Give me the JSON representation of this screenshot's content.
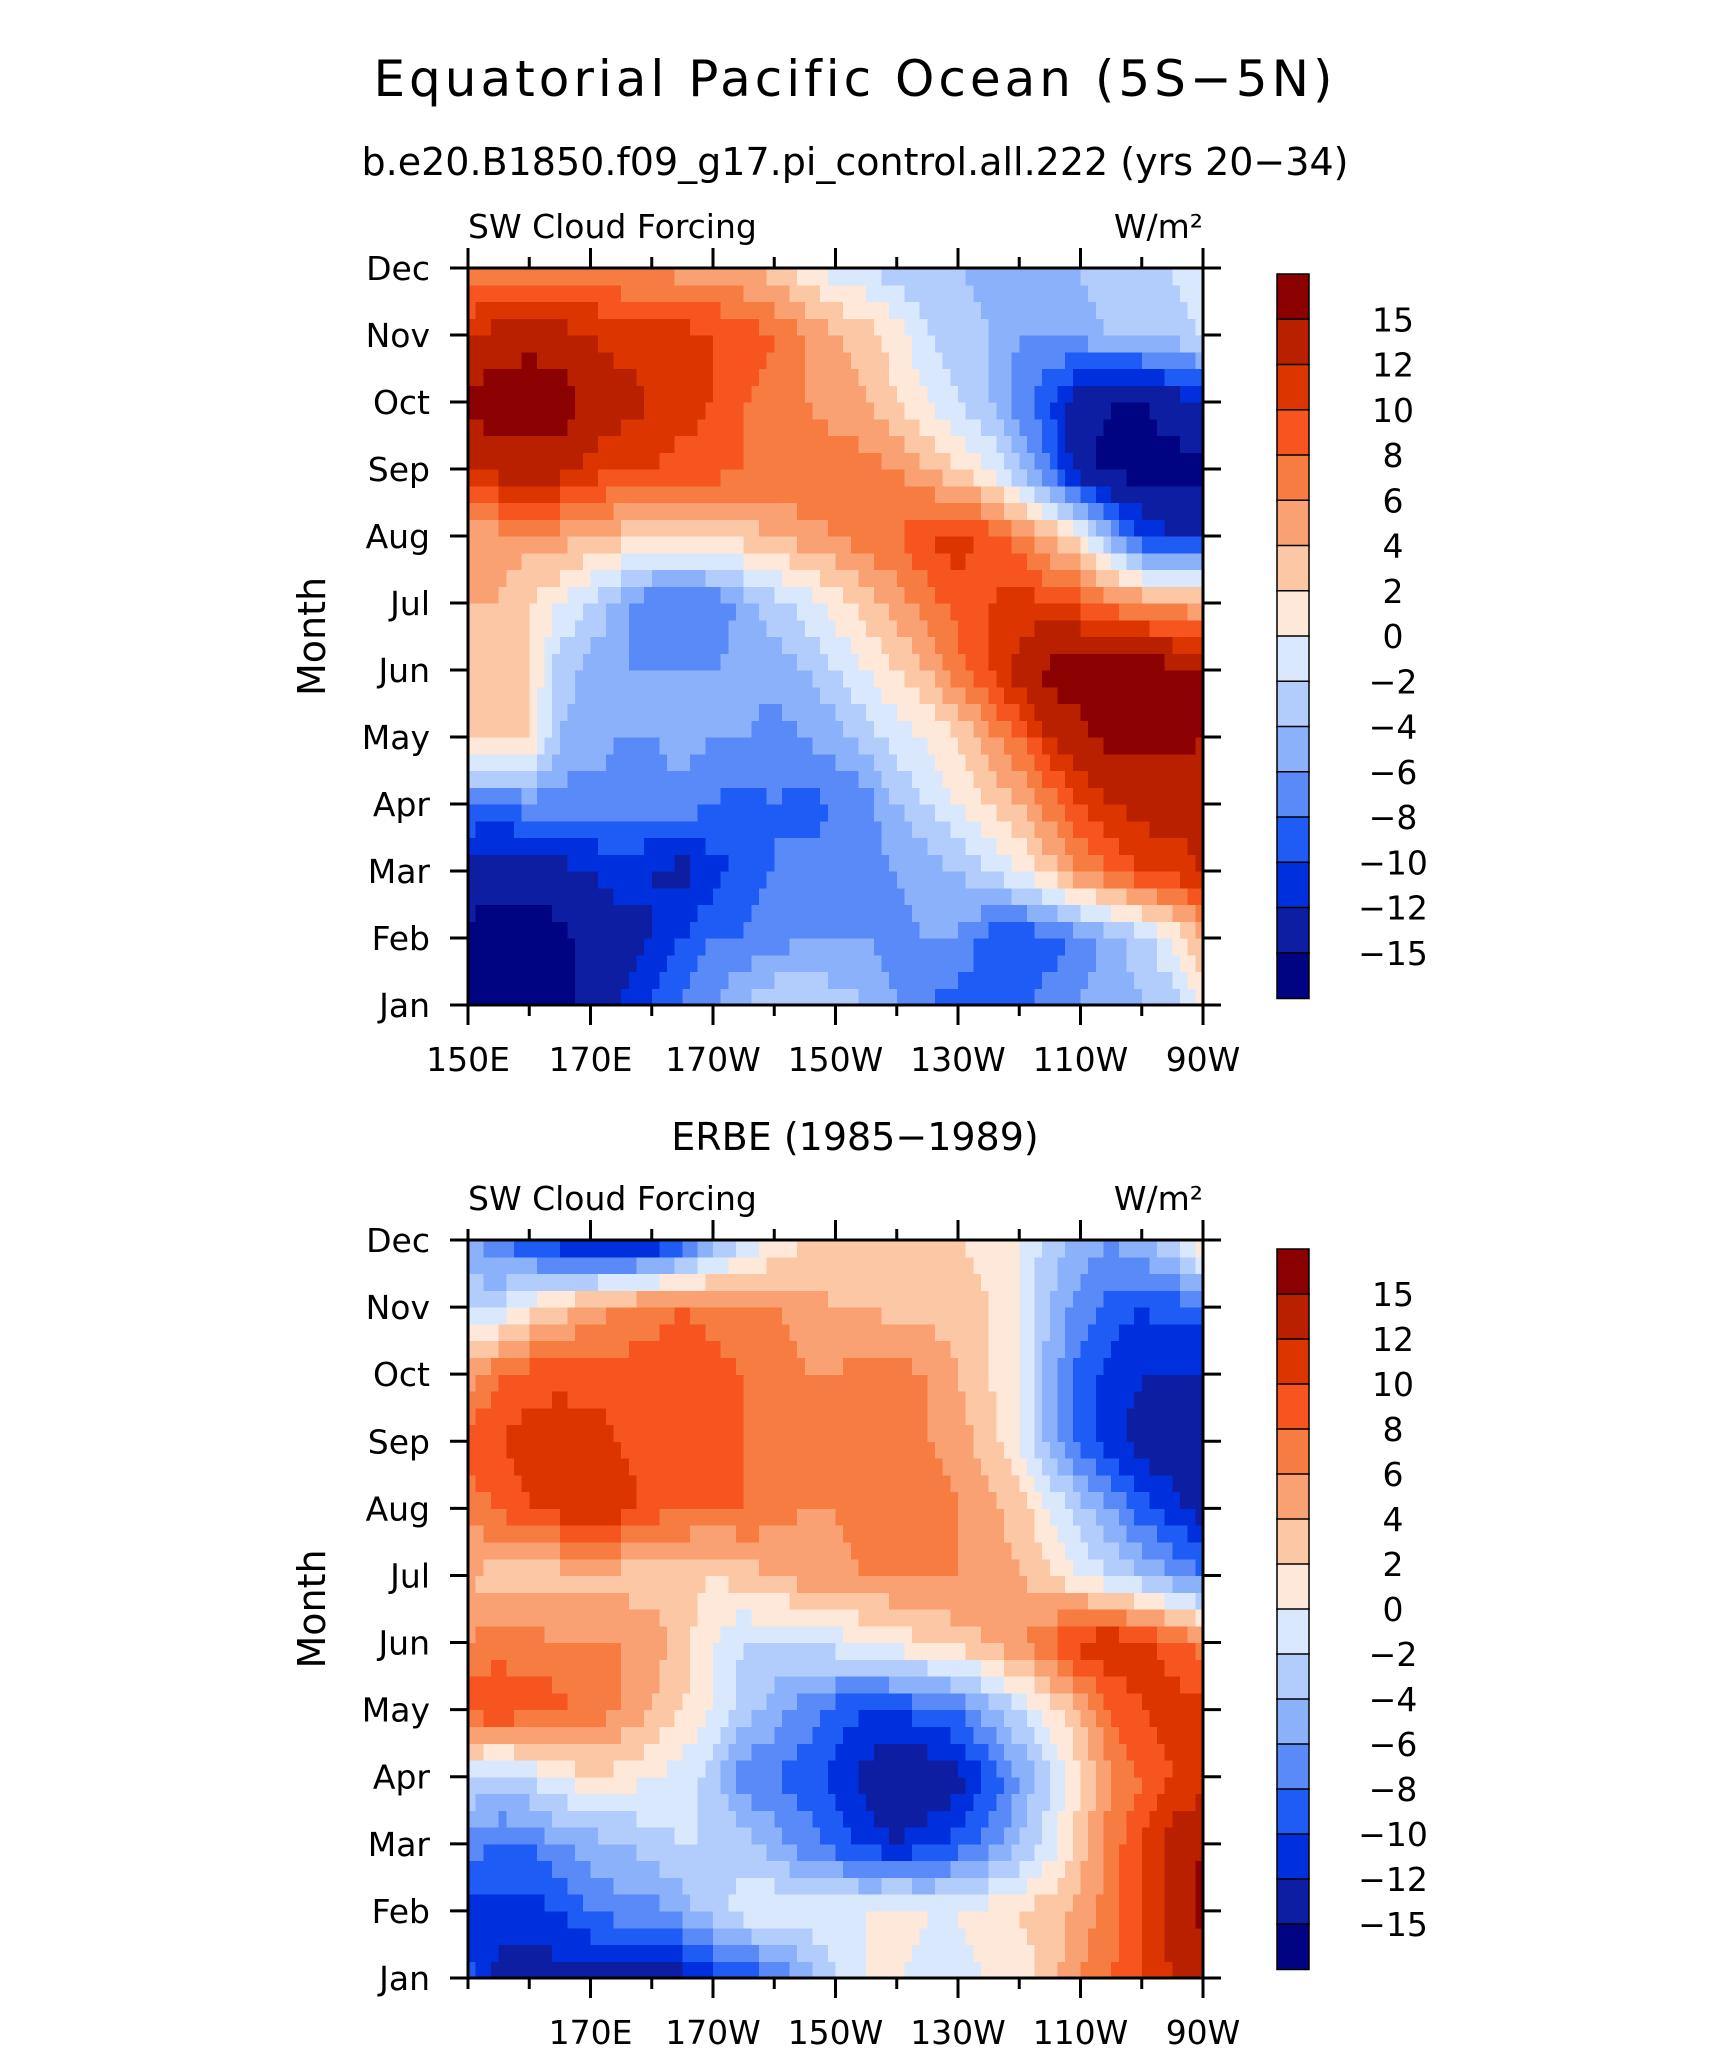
{
  "figure": {
    "title": "Equatorial Pacific Ocean (5S−5N)",
    "subtitle": "b.e20.B1850.f09_g17.pi_control.all.222 (yrs 20−34)",
    "panel2_title": "ERBE (1985−1989)"
  },
  "colorbar": {
    "labels": [
      "15",
      "12",
      "10",
      "8",
      "6",
      "4",
      "2",
      "0",
      "−2",
      "−4",
      "−6",
      "−8",
      "−10",
      "−12",
      "−15"
    ],
    "colors": [
      "#8b0000",
      "#b82000",
      "#dd3500",
      "#f65520",
      "#f67c42",
      "#f9a172",
      "#fbc7a4",
      "#fde8d9",
      "#d9e8fc",
      "#b2cdfb",
      "#8bb1fa",
      "#5a8af7",
      "#1e5cf5",
      "#0030de",
      "#0d1ea3",
      "#000483"
    ]
  },
  "chart_data": [
    {
      "type": "heatmap",
      "panel": "model",
      "left_label": "SW Cloud Forcing",
      "right_label": "W/m²",
      "ylabel": "Month",
      "y_categories": [
        "Jan",
        "Feb",
        "Mar",
        "Apr",
        "May",
        "Jun",
        "Jul",
        "Aug",
        "Sep",
        "Oct",
        "Nov",
        "Dec"
      ],
      "x_tick_labels": [
        "150E",
        "170E",
        "170W",
        "150W",
        "130W",
        "110W",
        "90W"
      ],
      "x_tick_lon": [
        150,
        170,
        190,
        210,
        230,
        250,
        270
      ],
      "xlim": [
        150,
        270
      ],
      "grid_lon": [
        150,
        155,
        160,
        165,
        170,
        175,
        180,
        185,
        190,
        195,
        200,
        205,
        210,
        215,
        220,
        225,
        230,
        235,
        240,
        245,
        250,
        255,
        260,
        265,
        270
      ],
      "units": "W/m²",
      "values": [
        [
          -16,
          -16,
          -16,
          -16,
          -14,
          -12,
          -10,
          -8,
          -6,
          -4,
          -2,
          -2,
          -3,
          -4,
          -6,
          -8,
          -9,
          -10,
          -9,
          -7,
          -6,
          -5,
          -4,
          -3,
          0
        ],
        [
          -16,
          -16,
          -16,
          -16,
          -14,
          -13,
          -12,
          -10,
          -8,
          -8,
          -7,
          -6,
          -6,
          -6,
          -7,
          -6,
          -6,
          -9,
          -10,
          -9,
          -7,
          -5,
          -3,
          0,
          4
        ],
        [
          -13,
          -14,
          -14,
          -13,
          -12,
          -11,
          -12,
          -13,
          -11,
          -9,
          -8,
          -7,
          -7,
          -7,
          -6,
          -5,
          -4,
          -2,
          0,
          3,
          6,
          8,
          10,
          11,
          12
        ],
        [
          -8,
          -8,
          -7,
          -7,
          -7,
          -7,
          -7,
          -7,
          -8,
          -9,
          -8,
          -9,
          -8,
          -7,
          -4,
          -2,
          0,
          2,
          4,
          7,
          10,
          12,
          13,
          13,
          13
        ],
        [
          3,
          3,
          2,
          -4,
          -5,
          -6,
          -6,
          -5,
          -6,
          -6,
          -7,
          -6,
          -5,
          -3,
          -1,
          0,
          2,
          5,
          8,
          12,
          14,
          16,
          16,
          16,
          15
        ],
        [
          3,
          3,
          2,
          -3,
          -5,
          -6,
          -6,
          -6,
          -6,
          -5,
          -5,
          -4,
          -2,
          0,
          2,
          4,
          7,
          10,
          13,
          16,
          17,
          17,
          17,
          16,
          15
        ],
        [
          4,
          4,
          2,
          0,
          -2,
          -5,
          -8,
          -8,
          -8,
          -5,
          -3,
          -1,
          1,
          3,
          5,
          7,
          9,
          10,
          11,
          10,
          9,
          7,
          6,
          5,
          4
        ],
        [
          5,
          5,
          5,
          5,
          4,
          3,
          2,
          2,
          3,
          3,
          4,
          5,
          6,
          7,
          8,
          10,
          11,
          9,
          7,
          4,
          1,
          -5,
          -10,
          -12,
          -12
        ],
        [
          12,
          13,
          13,
          13,
          11,
          10,
          10,
          9,
          9,
          8,
          8,
          8,
          7,
          7,
          6,
          4,
          2,
          0,
          -4,
          -8,
          -14,
          -16,
          -16,
          -16,
          -16
        ],
        [
          16,
          17,
          17,
          17,
          14,
          13,
          12,
          11,
          10,
          8,
          7,
          6,
          5,
          4,
          2,
          0,
          -2,
          -4,
          -7,
          -10,
          -14,
          -15,
          -15,
          -14,
          -12
        ],
        [
          12,
          13,
          14,
          13,
          12,
          11,
          11,
          11,
          10,
          9,
          8,
          6,
          4,
          3,
          1,
          -2,
          -3,
          -4,
          -6,
          -6,
          -5,
          -4,
          -4,
          -3,
          -2
        ],
        [
          6,
          7,
          7,
          7,
          7,
          6,
          6,
          5,
          5,
          4,
          3,
          1,
          -1,
          -2,
          -3,
          -4,
          -4,
          -5,
          -5,
          -4,
          -4,
          -3,
          -3,
          -2,
          -1
        ]
      ]
    },
    {
      "type": "heatmap",
      "panel": "ERBE",
      "left_label": "SW Cloud Forcing",
      "right_label": "W/m²",
      "ylabel": "Month",
      "y_categories": [
        "Jan",
        "Feb",
        "Mar",
        "Apr",
        "May",
        "Jun",
        "Jul",
        "Aug",
        "Sep",
        "Oct",
        "Nov",
        "Dec"
      ],
      "x_tick_labels": [
        "170E",
        "170W",
        "150W",
        "130W",
        "110W",
        "90W"
      ],
      "x_tick_lon": [
        170,
        190,
        210,
        230,
        250,
        270
      ],
      "xlim": [
        150,
        270
      ],
      "grid_lon": [
        150,
        155,
        160,
        165,
        170,
        175,
        180,
        185,
        190,
        195,
        200,
        205,
        210,
        215,
        220,
        225,
        230,
        235,
        240,
        245,
        250,
        255,
        260,
        265,
        270
      ],
      "units": "W/m²",
      "values": [
        [
          -9,
          -13,
          -13,
          -13,
          -13,
          -13,
          -14,
          -13,
          -11,
          -10,
          -8,
          -5,
          -2,
          0,
          0,
          -1,
          -1,
          0,
          1,
          3,
          6,
          8,
          10,
          12,
          14
        ],
        [
          -11,
          -11,
          -11,
          -10,
          -8,
          -7,
          -7,
          -5,
          -3,
          -1,
          0,
          -1,
          0,
          0,
          1,
          0,
          0,
          1,
          2,
          3,
          5,
          7,
          10,
          13,
          16
        ],
        [
          -7,
          -8,
          -8,
          -6,
          -5,
          -4,
          -3,
          -2,
          -2,
          -3,
          -5,
          -7,
          -9,
          -11,
          -12,
          -11,
          -9,
          -7,
          -4,
          -1,
          3,
          7,
          10,
          13,
          15
        ],
        [
          -2,
          -3,
          -2,
          0,
          2,
          1,
          0,
          -1,
          -3,
          -7,
          -8,
          -9,
          -11,
          -13,
          -14,
          -14,
          -13,
          -10,
          -6,
          -2,
          2,
          6,
          8,
          10,
          11
        ],
        [
          9,
          10,
          9,
          9,
          7,
          6,
          4,
          2,
          0,
          -3,
          -5,
          -7,
          -9,
          -10,
          -10,
          -9,
          -8,
          -5,
          -2,
          1,
          4,
          8,
          10,
          11,
          11
        ],
        [
          6,
          7,
          7,
          6,
          6,
          6,
          5,
          3,
          0,
          -2,
          -2,
          -2,
          -1,
          0,
          1,
          2,
          3,
          4,
          6,
          8,
          11,
          12,
          11,
          9,
          7
        ],
        [
          4,
          3,
          3,
          3,
          3,
          3,
          3,
          3,
          2,
          3,
          4,
          5,
          5,
          6,
          6,
          6,
          6,
          5,
          4,
          2,
          0,
          -2,
          -4,
          -6,
          -8
        ],
        [
          7,
          8,
          10,
          11,
          11,
          11,
          9,
          8,
          8,
          8,
          7,
          6,
          6,
          7,
          7,
          7,
          6,
          5,
          3,
          0,
          -3,
          -6,
          -9,
          -11,
          -13
        ],
        [
          9,
          10,
          11,
          12,
          11,
          10,
          9,
          9,
          9,
          8,
          7,
          6,
          6,
          7,
          7,
          6,
          5,
          3,
          0,
          -5,
          -9,
          -11,
          -13,
          -14,
          -15
        ],
        [
          5,
          8,
          9,
          9,
          9,
          9,
          9,
          10,
          9,
          8,
          7,
          6,
          6,
          7,
          7,
          6,
          4,
          2,
          0,
          -5,
          -9,
          -11,
          -12,
          -12,
          -12
        ],
        [
          -3,
          -2,
          1,
          3,
          5,
          6,
          7,
          8,
          7,
          6,
          6,
          5,
          4,
          4,
          3,
          3,
          3,
          2,
          0,
          -4,
          -7,
          -9,
          -10,
          -9,
          -9
        ],
        [
          -5,
          -8,
          -10,
          -12,
          -14,
          -14,
          -13,
          -10,
          -6,
          -2,
          0,
          2,
          3,
          3,
          3,
          2,
          2,
          1,
          0,
          -3,
          -5,
          -6,
          -4,
          -2,
          3
        ]
      ]
    }
  ]
}
